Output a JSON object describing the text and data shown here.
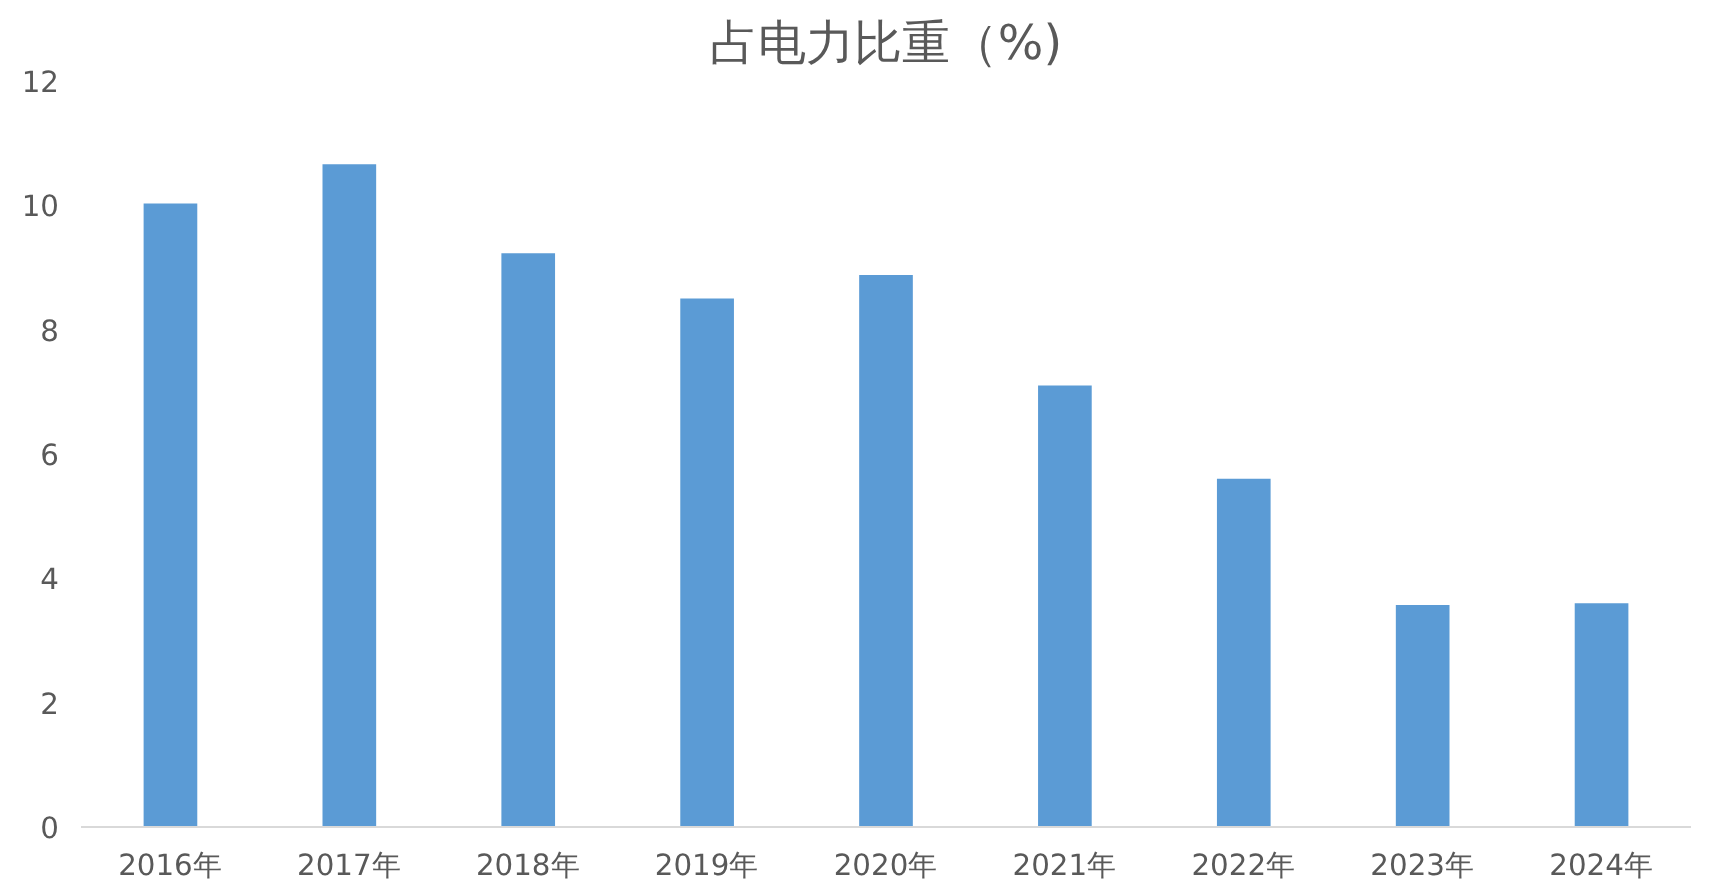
{
  "chart_data": {
    "type": "bar",
    "title": "占电力比重（%)",
    "categories": [
      "2016年",
      "2017年",
      "2018年",
      "2019年",
      "2020年",
      "2021年",
      "2022年",
      "2023年",
      "2024年"
    ],
    "values": [
      10.03,
      10.66,
      9.23,
      8.5,
      8.88,
      7.1,
      5.6,
      3.57,
      3.6
    ],
    "color": "#5b9bd5",
    "ylim": [
      0,
      12
    ],
    "yticks": [
      0,
      2,
      4,
      6,
      8,
      10,
      12
    ],
    "grid": false
  }
}
